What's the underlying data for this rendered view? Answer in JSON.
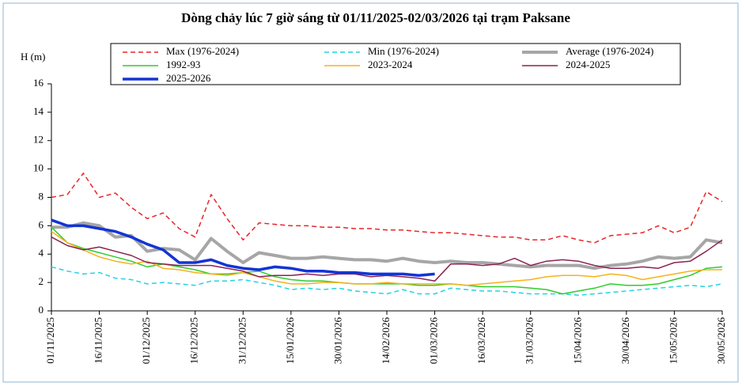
{
  "chart_data": {
    "type": "line",
    "title": "Dòng chảy lúc 7 giờ sáng từ 01/11/2025-02/03/2026 tại trạm Paksane",
    "y_label": "H (m)",
    "x": [
      "01/11/2025",
      "06/11/2025",
      "11/11/2025",
      "16/11/2025",
      "21/11/2025",
      "26/11/2025",
      "01/12/2025",
      "06/12/2025",
      "11/12/2025",
      "16/12/2025",
      "21/12/2025",
      "26/12/2025",
      "31/12/2025",
      "05/01/2026",
      "10/01/2026",
      "15/01/2026",
      "20/01/2026",
      "25/01/2026",
      "30/01/2026",
      "04/02/2026",
      "09/02/2026",
      "14/02/2026",
      "19/02/2026",
      "24/02/2026",
      "01/03/2026",
      "06/03/2026",
      "11/03/2026",
      "16/03/2026",
      "21/03/2026",
      "26/03/2026",
      "31/03/2026",
      "05/04/2026",
      "10/04/2026",
      "15/04/2026",
      "20/04/2026",
      "25/04/2026",
      "30/04/2026",
      "05/05/2026",
      "10/05/2026",
      "15/05/2026",
      "20/05/2026",
      "25/05/2026",
      "30/05/2026"
    ],
    "xlim": [
      "01/11/2025",
      "30/05/2026"
    ],
    "xticks": [
      "01/11/2025",
      "16/11/2025",
      "01/12/2025",
      "16/12/2025",
      "31/12/2025",
      "15/01/2026",
      "30/01/2026",
      "14/02/2026",
      "01/03/2026",
      "16/03/2026",
      "31/03/2026",
      "15/04/2026",
      "30/04/2026",
      "15/05/2026",
      "30/05/2026"
    ],
    "ylim": [
      0,
      16
    ],
    "yticks": [
      0,
      2,
      4,
      6,
      8,
      10,
      12,
      14,
      16
    ],
    "grid": false,
    "series": [
      {
        "name": "Max (1976-2024)",
        "color": "#e8262a",
        "dashed": true,
        "width": 1.5,
        "values": [
          8.0,
          8.2,
          9.7,
          8.0,
          8.3,
          7.3,
          6.5,
          6.9,
          5.8,
          5.2,
          8.2,
          6.5,
          5.0,
          6.2,
          6.1,
          6.0,
          6.0,
          5.9,
          5.9,
          5.8,
          5.8,
          5.7,
          5.7,
          5.6,
          5.5,
          5.5,
          5.4,
          5.3,
          5.2,
          5.2,
          5.0,
          5.0,
          5.3,
          5.0,
          4.8,
          5.3,
          5.4,
          5.5,
          6.0,
          5.5,
          5.9,
          8.4,
          7.7
        ]
      },
      {
        "name": "Min (1976-2024)",
        "color": "#22d3e6",
        "dashed": true,
        "width": 1.5,
        "values": [
          3.1,
          2.8,
          2.6,
          2.7,
          2.3,
          2.2,
          1.9,
          2.0,
          1.9,
          1.8,
          2.1,
          2.1,
          2.2,
          2.0,
          1.8,
          1.5,
          1.6,
          1.5,
          1.6,
          1.4,
          1.3,
          1.2,
          1.5,
          1.2,
          1.2,
          1.6,
          1.5,
          1.4,
          1.4,
          1.3,
          1.2,
          1.2,
          1.2,
          1.1,
          1.2,
          1.3,
          1.4,
          1.5,
          1.6,
          1.7,
          1.8,
          1.7,
          1.9
        ]
      },
      {
        "name": "Average (1976-2024)",
        "color": "#a6a6a6",
        "dashed": false,
        "width": 4,
        "values": [
          5.9,
          5.9,
          6.2,
          6.0,
          5.2,
          5.3,
          4.2,
          4.4,
          4.3,
          3.6,
          5.1,
          4.2,
          3.4,
          4.1,
          3.9,
          3.7,
          3.7,
          3.8,
          3.7,
          3.6,
          3.6,
          3.5,
          3.7,
          3.5,
          3.4,
          3.5,
          3.4,
          3.4,
          3.3,
          3.2,
          3.1,
          3.2,
          3.2,
          3.2,
          3.0,
          3.2,
          3.3,
          3.5,
          3.8,
          3.7,
          3.8,
          5.0,
          4.8
        ]
      },
      {
        "name": "1992-93",
        "color": "#2ecc2e",
        "dashed": false,
        "width": 1.5,
        "values": [
          5.9,
          4.8,
          4.4,
          4.1,
          3.8,
          3.5,
          3.1,
          3.3,
          3.1,
          2.9,
          2.6,
          2.6,
          2.7,
          2.8,
          2.4,
          2.2,
          2.1,
          2.1,
          2.0,
          1.9,
          1.9,
          1.9,
          1.9,
          1.8,
          1.8,
          1.9,
          1.8,
          1.7,
          1.7,
          1.7,
          1.6,
          1.5,
          1.2,
          1.4,
          1.6,
          1.9,
          1.8,
          1.8,
          1.9,
          2.2,
          2.5,
          3.0,
          3.1
        ]
      },
      {
        "name": "2023-2024",
        "color": "#f5b21b",
        "dashed": false,
        "width": 1.5,
        "values": [
          5.6,
          4.8,
          4.3,
          3.8,
          3.5,
          3.3,
          3.5,
          3.0,
          2.9,
          2.7,
          2.6,
          2.5,
          2.7,
          2.4,
          2.1,
          1.9,
          1.9,
          2.0,
          2.0,
          1.9,
          1.9,
          2.0,
          1.9,
          1.9,
          1.9,
          1.9,
          1.8,
          1.9,
          2.0,
          2.1,
          2.2,
          2.4,
          2.5,
          2.5,
          2.4,
          2.6,
          2.5,
          2.2,
          2.4,
          2.6,
          2.8,
          2.9,
          2.9
        ]
      },
      {
        "name": "2024-2025",
        "color": "#8b2252",
        "dashed": false,
        "width": 1.5,
        "values": [
          5.2,
          4.6,
          4.3,
          4.5,
          4.2,
          3.9,
          3.4,
          3.3,
          3.2,
          3.2,
          3.2,
          3.0,
          2.8,
          2.4,
          2.5,
          2.5,
          2.6,
          2.5,
          2.6,
          2.6,
          2.4,
          2.5,
          2.4,
          2.3,
          2.1,
          3.3,
          3.3,
          3.2,
          3.3,
          3.7,
          3.2,
          3.5,
          3.6,
          3.5,
          3.2,
          3.0,
          3.0,
          3.1,
          3.0,
          3.4,
          3.5,
          4.2,
          5.0
        ]
      },
      {
        "name": "2025-2026",
        "color": "#1234d6",
        "dashed": false,
        "width": 3.5,
        "values": [
          6.4,
          6.0,
          6.0,
          5.8,
          5.6,
          5.2,
          4.7,
          4.3,
          3.4,
          3.4,
          3.6,
          3.2,
          3.0,
          2.9,
          3.1,
          3.0,
          2.8,
          2.8,
          2.7,
          2.7,
          2.6,
          2.6,
          2.6,
          2.5,
          2.6,
          null,
          null,
          null,
          null,
          null,
          null,
          null,
          null,
          null,
          null,
          null,
          null,
          null,
          null,
          null,
          null,
          null,
          null
        ]
      }
    ]
  }
}
